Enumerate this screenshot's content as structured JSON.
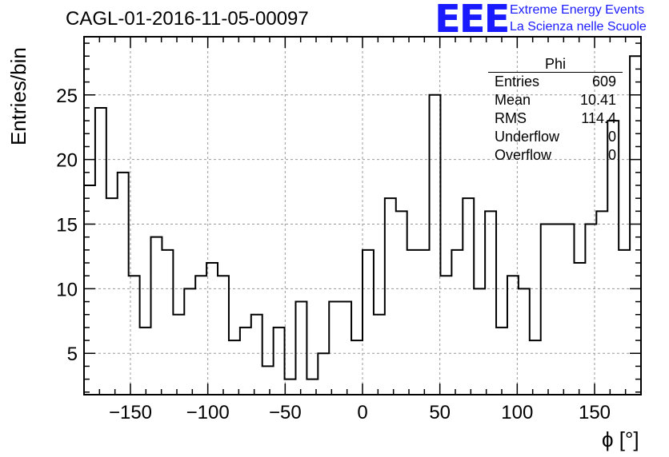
{
  "title": "CAGL-01-2016-11-05-00097",
  "logo": {
    "mark": "EEE",
    "line1": "Extreme Energy Events",
    "line2": "La Scienza nelle Scuole",
    "color": "#1a1aff"
  },
  "stats": {
    "name": "Phi",
    "rows": [
      {
        "label": "Entries",
        "value": "609"
      },
      {
        "label": "Mean",
        "value": "10.41"
      },
      {
        "label": "RMS",
        "value": "114.4"
      },
      {
        "label": "Underflow",
        "value": "0"
      },
      {
        "label": "Overflow",
        "value": "0"
      }
    ]
  },
  "chart_data": {
    "type": "histogram",
    "title": "CAGL-01-2016-11-05-00097",
    "xlabel": "ϕ [°]",
    "ylabel": "Entries/bin",
    "xlim": [
      -180,
      180
    ],
    "ylim": [
      1.8,
      29.5
    ],
    "xticks": [
      -150,
      -100,
      -50,
      0,
      50,
      100,
      150
    ],
    "yticks": [
      5,
      10,
      15,
      20,
      25
    ],
    "grid": true,
    "bin_width": 7.2,
    "bin_start": -180,
    "values": [
      18,
      24,
      17,
      19,
      11,
      7,
      14,
      13,
      8,
      10,
      11,
      12,
      11,
      6,
      7,
      8,
      4,
      7,
      3,
      9,
      3,
      5,
      9,
      9,
      6,
      13,
      8,
      17,
      16,
      13,
      13,
      25,
      11,
      13,
      17,
      10,
      16,
      7,
      11,
      10,
      6,
      15,
      15,
      15,
      12,
      15,
      16,
      23,
      13,
      28
    ]
  }
}
